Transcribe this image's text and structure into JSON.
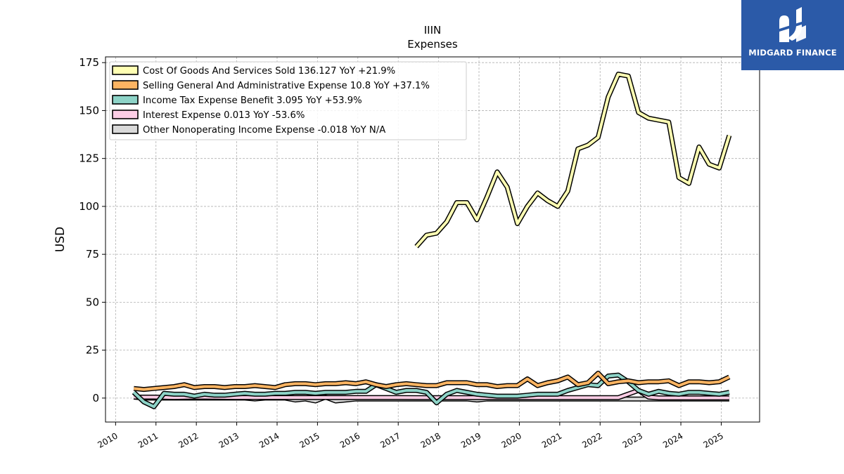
{
  "chart_data": {
    "type": "line",
    "title": "IIIN",
    "subtitle": "Expenses",
    "xlabel": "",
    "ylabel": "USD",
    "xlim": [
      2009.75,
      2025.95
    ],
    "ylim": [
      -12.5,
      178
    ],
    "x_ticks": [
      "2010",
      "2011",
      "2012",
      "2013",
      "2014",
      "2015",
      "2016",
      "2017",
      "2018",
      "2019",
      "2020",
      "2021",
      "2022",
      "2023",
      "2024",
      "2025"
    ],
    "y_ticks": [
      "0",
      "25",
      "50",
      "75",
      "100",
      "125",
      "150",
      "175"
    ],
    "grid": true,
    "legend_position": "top-left",
    "series": [
      {
        "name": "Cost Of Goods And Services Sold",
        "legend_label": "Cost Of Goods And Services Sold  136.127 YoY +21.9%",
        "color": "#ffffb3",
        "x": [
          2017.45,
          2017.7,
          2017.95,
          2018.2,
          2018.45,
          2018.7,
          2018.95,
          2019.2,
          2019.45,
          2019.7,
          2019.95,
          2020.2,
          2020.45,
          2020.7,
          2020.95,
          2021.2,
          2021.45,
          2021.7,
          2021.95,
          2022.2,
          2022.45,
          2022.7,
          2022.95,
          2023.2,
          2023.45,
          2023.7,
          2023.95,
          2024.2,
          2024.45,
          2024.7,
          2024.95,
          2025.2
        ],
        "values": [
          79,
          85,
          86,
          92,
          102,
          102,
          93,
          105,
          118,
          110,
          91,
          100,
          107,
          103,
          100,
          108,
          130,
          132,
          136,
          157,
          169,
          168,
          149,
          146,
          145,
          144,
          115,
          112,
          131,
          122,
          120,
          137
        ]
      },
      {
        "name": "Selling General And Administrative Expense",
        "legend_label": "Selling General And Administrative Expense  10.8 YoY +37.1%",
        "color": "#fdb462",
        "x": [
          2010.45,
          2010.7,
          2010.95,
          2011.2,
          2011.45,
          2011.7,
          2011.95,
          2012.2,
          2012.45,
          2012.7,
          2012.95,
          2013.2,
          2013.45,
          2013.7,
          2013.95,
          2014.2,
          2014.45,
          2014.7,
          2014.95,
          2015.2,
          2015.45,
          2015.7,
          2015.95,
          2016.2,
          2016.45,
          2016.7,
          2016.95,
          2017.2,
          2017.45,
          2017.7,
          2017.95,
          2018.2,
          2018.45,
          2018.7,
          2018.95,
          2019.2,
          2019.45,
          2019.7,
          2019.95,
          2020.2,
          2020.45,
          2020.7,
          2020.95,
          2021.2,
          2021.45,
          2021.7,
          2021.95,
          2022.2,
          2022.45,
          2022.7,
          2022.95,
          2023.2,
          2023.45,
          2023.7,
          2023.95,
          2024.2,
          2024.45,
          2024.7,
          2024.95,
          2025.2
        ],
        "values": [
          5,
          4.5,
          5,
          5.5,
          6,
          7,
          5.5,
          6,
          6,
          5.5,
          6,
          6,
          6.5,
          6,
          5.5,
          7,
          7.5,
          7.5,
          7,
          7.5,
          7.5,
          8,
          7.5,
          8.5,
          7,
          6,
          7,
          7.5,
          7,
          6.5,
          6.5,
          8,
          8,
          8,
          7,
          7,
          6,
          6.5,
          6.5,
          10,
          6.5,
          8,
          9,
          11,
          7,
          8,
          13,
          7.5,
          8.5,
          9,
          8,
          8.5,
          8.5,
          9,
          6.5,
          8.5,
          8.5,
          8,
          8.5,
          11
        ]
      },
      {
        "name": "Income Tax Expense Benefit",
        "legend_label": "Income Tax Expense Benefit  3.095 YoY +53.9%",
        "color": "#8dd3c7",
        "x": [
          2010.45,
          2010.7,
          2010.95,
          2011.2,
          2011.45,
          2011.7,
          2011.95,
          2012.2,
          2012.45,
          2012.7,
          2012.95,
          2013.2,
          2013.45,
          2013.7,
          2013.95,
          2014.2,
          2014.45,
          2014.7,
          2014.95,
          2015.2,
          2015.45,
          2015.7,
          2015.95,
          2016.2,
          2016.45,
          2016.7,
          2016.95,
          2017.2,
          2017.45,
          2017.7,
          2017.95,
          2018.2,
          2018.45,
          2018.7,
          2018.95,
          2019.2,
          2019.45,
          2019.7,
          2019.95,
          2020.2,
          2020.45,
          2020.7,
          2020.95,
          2021.2,
          2021.45,
          2021.7,
          2021.95,
          2022.2,
          2022.45,
          2022.7,
          2022.95,
          2023.2,
          2023.45,
          2023.7,
          2023.95,
          2024.2,
          2024.45,
          2024.7,
          2024.95,
          2025.2
        ],
        "values": [
          3,
          -2,
          -4.5,
          2.5,
          2,
          2,
          1,
          2,
          1.5,
          1.5,
          2,
          2.5,
          2,
          2,
          2.5,
          2.5,
          3,
          3,
          2.5,
          3,
          3,
          3,
          3.5,
          3.5,
          7,
          5,
          3,
          4,
          4,
          3,
          -2.5,
          2,
          4,
          3,
          2,
          1.5,
          1,
          1,
          1,
          1.5,
          2,
          2,
          2,
          4,
          5.5,
          7,
          6.5,
          11.5,
          12,
          8.5,
          4,
          2,
          3.5,
          2.5,
          2,
          3,
          3,
          2.5,
          2,
          3
        ]
      },
      {
        "name": "Interest Expense",
        "legend_label": "Interest Expense  0.013 YoY -53.6%",
        "color": "#fccde5",
        "x": [
          2010.45,
          2010.95,
          2011.45,
          2011.95,
          2012.45,
          2012.95,
          2013.45,
          2013.95,
          2014.45,
          2014.95,
          2015.45,
          2015.95,
          2016.45,
          2016.95,
          2017.45,
          2017.95,
          2018.45,
          2018.95,
          2019.45,
          2019.95,
          2020.45,
          2020.95,
          2021.45,
          2021.95,
          2022.45,
          2022.95,
          2023.2,
          2023.45,
          2023.95,
          2024.45,
          2024.95,
          2025.2
        ],
        "values": [
          0.5,
          0.5,
          0.3,
          0.5,
          0.4,
          0.3,
          0.3,
          0.3,
          0.3,
          0.3,
          0.3,
          0.3,
          0.3,
          0.3,
          0.2,
          0.2,
          0.2,
          0.2,
          0.2,
          0.2,
          0.2,
          0.2,
          0.2,
          0.2,
          0.2,
          4,
          0.5,
          0.1,
          0.1,
          0.1,
          0.1,
          0.1
        ]
      },
      {
        "name": "Other Nonoperating Income Expense",
        "legend_label": "Other Nonoperating Income Expense  -0.018 YoY N/A",
        "color": "#d9d9d9",
        "x": [
          2010.45,
          2010.7,
          2010.95,
          2011.2,
          2011.45,
          2011.7,
          2011.95,
          2012.2,
          2012.45,
          2012.7,
          2012.95,
          2013.2,
          2013.45,
          2013.7,
          2013.95,
          2014.2,
          2014.45,
          2014.7,
          2014.95,
          2015.2,
          2015.45,
          2015.7,
          2015.95,
          2016.2,
          2016.45,
          2016.7,
          2016.95,
          2017.2,
          2017.45,
          2017.7,
          2017.95,
          2018.2,
          2018.45,
          2018.7,
          2018.95,
          2019.2,
          2019.45,
          2019.7,
          2019.95,
          2020.2,
          2020.45,
          2020.7,
          2020.95,
          2021.2,
          2021.45,
          2021.7,
          2021.95,
          2022.2,
          2022.45,
          2022.7,
          2022.95,
          2023.2,
          2023.45,
          2023.7,
          2023.95,
          2024.2,
          2024.45,
          2024.7,
          2024.95,
          2025.2
        ],
        "values": [
          0.5,
          0,
          0,
          0,
          0,
          0,
          0,
          0,
          0,
          0,
          0,
          0,
          -0.5,
          0,
          0,
          0,
          -1,
          -0.5,
          -1.5,
          0.5,
          -1.5,
          -1,
          -0.5,
          -0.5,
          -0.5,
          -0.5,
          -0.5,
          -0.5,
          -0.5,
          -0.5,
          -0.5,
          -0.5,
          -0.5,
          -0.5,
          -1,
          -0.5,
          -0.5,
          -0.5,
          -0.5,
          -0.5,
          -0.5,
          -0.5,
          -0.5,
          -0.5,
          -0.5,
          -0.5,
          -0.5,
          -0.5,
          -0.5,
          -0.5,
          -0.5,
          -0.5,
          -0.5,
          -0.5,
          -0.5,
          -0.5,
          -0.5,
          -0.5,
          -0.5,
          -0.5
        ]
      }
    ]
  },
  "logo": {
    "text": "MIDGARD FINANCE",
    "background": "#2b5aa8",
    "text_color": "#ffffff"
  }
}
